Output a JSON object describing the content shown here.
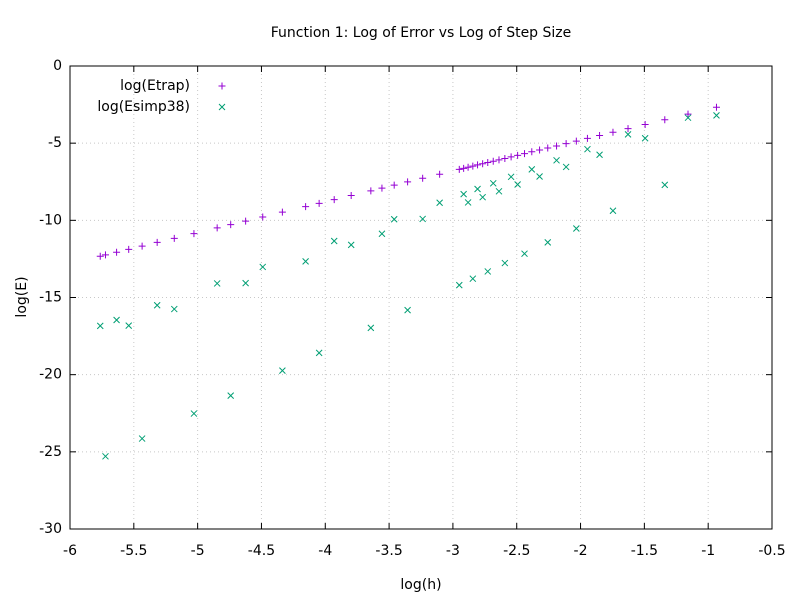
{
  "chart_data": {
    "type": "scatter",
    "title": "Function 1: Log of Error vs Log of Step Size",
    "x_label": "log(h)",
    "y_label": "log(E)",
    "xlim": [
      -6,
      -0.5
    ],
    "ylim": [
      -30,
      0
    ],
    "xticks": [
      -6,
      -5.5,
      -5,
      -4.5,
      -4,
      -3.5,
      -3,
      -2.5,
      -2,
      -1.5,
      -1,
      -0.5
    ],
    "yticks": [
      -30,
      -25,
      -20,
      -15,
      -10,
      -5,
      0
    ],
    "grid": true,
    "legend": "top-left",
    "x": [
      -0.935,
      -1.158,
      -1.34,
      -1.494,
      -1.628,
      -1.746,
      -1.851,
      -1.946,
      -2.033,
      -2.113,
      -2.188,
      -2.257,
      -2.321,
      -2.382,
      -2.439,
      -2.493,
      -2.544,
      -2.593,
      -2.639,
      -2.684,
      -2.727,
      -2.767,
      -2.807,
      -2.844,
      -2.881,
      -2.916,
      -2.95,
      -3.104,
      -3.237,
      -3.355,
      -3.46,
      -3.556,
      -3.643,
      -3.797,
      -3.93,
      -4.048,
      -4.154,
      -4.336,
      -4.49,
      -4.624,
      -4.741,
      -4.847,
      -5.029,
      -5.183,
      -5.317,
      -5.435,
      -5.54,
      -5.635,
      -5.722,
      -5.763
    ],
    "series": [
      {
        "name": "log(Etrap)",
        "color": "#9400d3",
        "marker": "plus",
        "values": [
          -2.67,
          -3.12,
          -3.48,
          -3.79,
          -4.06,
          -4.29,
          -4.5,
          -4.69,
          -4.87,
          -5.03,
          -5.18,
          -5.31,
          -5.44,
          -5.56,
          -5.68,
          -5.79,
          -5.89,
          -5.99,
          -6.08,
          -6.17,
          -6.25,
          -6.33,
          -6.41,
          -6.49,
          -6.56,
          -6.63,
          -6.7,
          -7.01,
          -7.27,
          -7.51,
          -7.72,
          -7.91,
          -8.09,
          -8.39,
          -8.66,
          -8.9,
          -9.11,
          -9.47,
          -9.78,
          -10.05,
          -10.28,
          -10.49,
          -10.86,
          -11.17,
          -11.43,
          -11.67,
          -11.88,
          -12.07,
          -12.24,
          -12.33
        ]
      },
      {
        "name": "log(Esimp38)",
        "color": "#009e73",
        "marker": "cross",
        "values": [
          -3.2,
          -3.35,
          -7.7,
          -4.68,
          -4.43,
          -9.38,
          -5.75,
          -5.39,
          -10.53,
          -6.54,
          -6.11,
          -11.43,
          -7.16,
          -6.7,
          -12.16,
          -7.68,
          -7.18,
          -12.77,
          -8.12,
          -7.6,
          -13.31,
          -8.5,
          -7.97,
          -13.78,
          -8.84,
          -8.3,
          -14.2,
          -8.86,
          -9.91,
          -15.82,
          -9.93,
          -10.87,
          -16.97,
          -11.59,
          -11.34,
          -18.59,
          -12.66,
          -19.74,
          -13.02,
          -14.07,
          -21.36,
          -14.09,
          -22.52,
          -15.75,
          -15.5,
          -24.14,
          -16.82,
          -16.46,
          -25.29,
          -16.84
        ]
      }
    ]
  }
}
